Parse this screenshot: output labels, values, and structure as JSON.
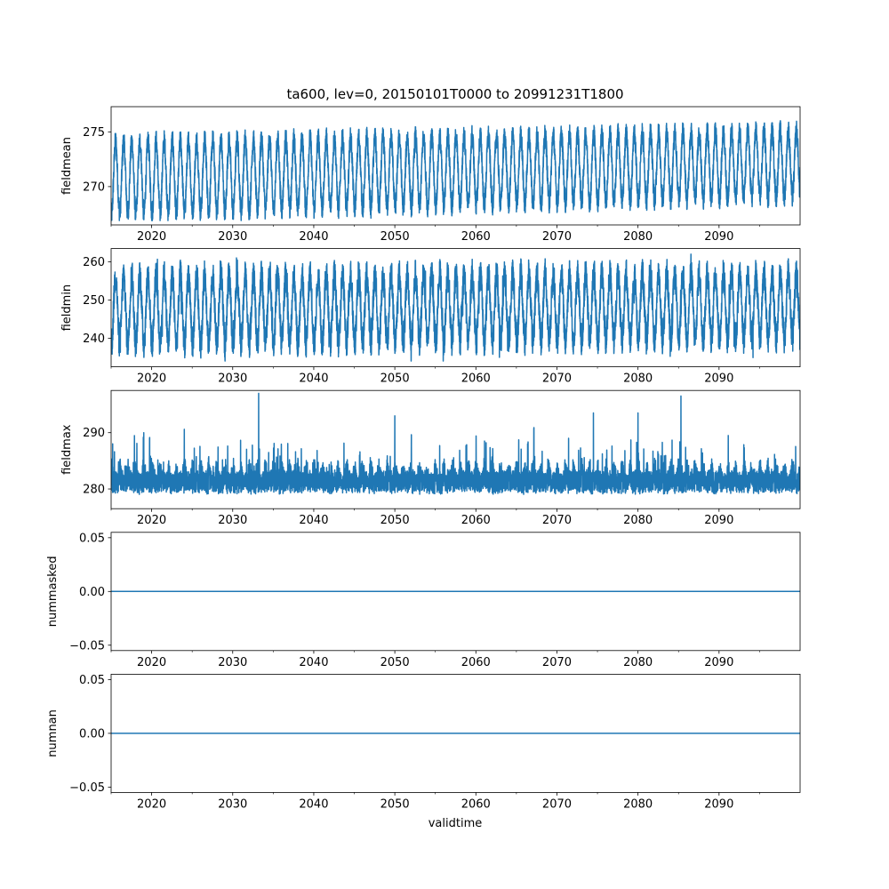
{
  "chart_data": {
    "title": "ta600, lev=0, 20150101T0000 to 20991231T1800",
    "xlabel": "validtime",
    "xlim": [
      2015.0,
      2100.0
    ],
    "xticks": [
      2020,
      2030,
      2040,
      2050,
      2060,
      2070,
      2080,
      2090
    ],
    "x_tick_labels": [
      "2020",
      "2030",
      "2040",
      "2050",
      "2060",
      "2070",
      "2080",
      "2090"
    ],
    "line_color": "#1f77b4",
    "panels": [
      {
        "type": "line",
        "ylabel": "fieldmean",
        "ylim": [
          266.5,
          277.3
        ],
        "yticks": [
          270,
          275
        ],
        "y_tick_labels": [
          "270",
          "275"
        ],
        "series": {
          "kind": "seasonal",
          "center_start": 270.8,
          "center_end": 272.1,
          "amp_start": 3.3,
          "amp_end": 3.0,
          "noise": 1.0,
          "max": 276.7,
          "min": 266.9
        }
      },
      {
        "type": "line",
        "ylabel": "fieldmin",
        "ylim": [
          232.5,
          263.5
        ],
        "yticks": [
          240,
          250,
          260
        ],
        "y_tick_labels": [
          "240",
          "250",
          "260"
        ],
        "series": {
          "kind": "seasonal-noisy",
          "center_start": 247.5,
          "center_end": 248.5,
          "amp_start": 9.0,
          "amp_end": 8.5,
          "noise": 4.0,
          "max": 263.0,
          "min": 234.0
        }
      },
      {
        "type": "line",
        "ylabel": "fieldmax",
        "ylim": [
          276.5,
          297.5
        ],
        "yticks": [
          280,
          290
        ],
        "y_tick_labels": [
          "280",
          "290"
        ],
        "series": {
          "kind": "spiky",
          "base": 279.5,
          "band": 6.0,
          "noise": 1.0,
          "max": 297.0,
          "min": 277.5,
          "spikes": [
            [
              2033.2,
              297.0
            ],
            [
              2085.3,
              296.5
            ],
            [
              2050.0,
              293.0
            ],
            [
              2074.5,
              293.5
            ],
            [
              2080.0,
              293.5
            ]
          ]
        }
      },
      {
        "type": "line",
        "ylabel": "nummasked",
        "ylim": [
          -0.055,
          0.055
        ],
        "yticks": [
          -0.05,
          0.0,
          0.05
        ],
        "y_tick_labels": [
          "−0.05",
          "0.00",
          "0.05"
        ],
        "series": {
          "kind": "constant",
          "value": 0.0
        }
      },
      {
        "type": "line",
        "ylabel": "numnan",
        "ylim": [
          -0.055,
          0.055
        ],
        "yticks": [
          -0.05,
          0.0,
          0.05
        ],
        "y_tick_labels": [
          "−0.05",
          "0.00",
          "0.05"
        ],
        "series": {
          "kind": "constant",
          "value": 0.0
        }
      }
    ]
  }
}
